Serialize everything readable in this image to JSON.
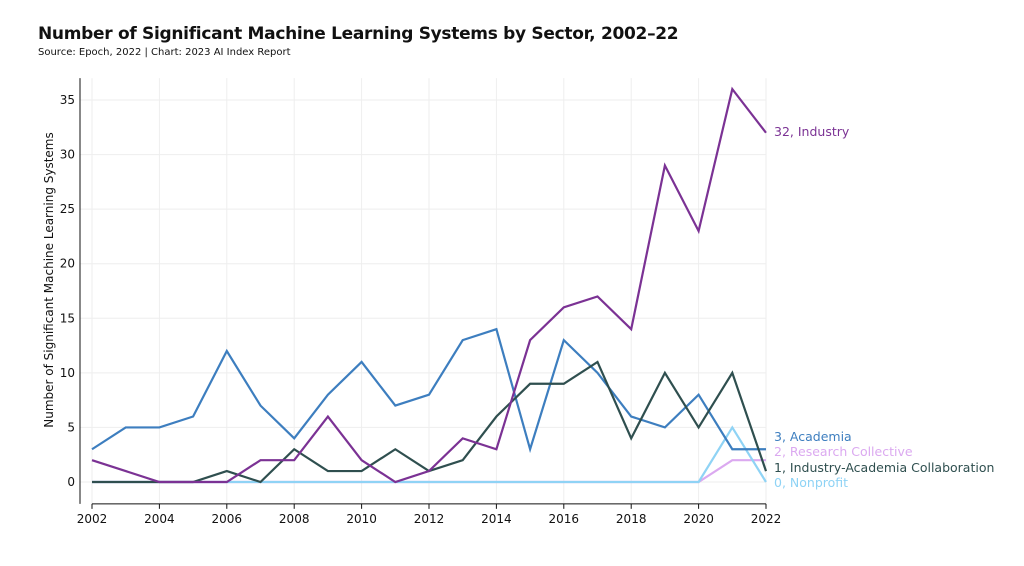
{
  "chart_data": {
    "type": "line",
    "title": "Number of Significant Machine Learning Systems by Sector, 2002–22",
    "subtitle": "Source: Epoch, 2022 | Chart: 2023 AI Index Report",
    "xlabel": "",
    "ylabel": "Number of Significant Machine Learning Systems",
    "xlim": [
      2002,
      2022
    ],
    "ylim": [
      -2,
      37
    ],
    "xticks": [
      2002,
      2004,
      2006,
      2008,
      2010,
      2012,
      2014,
      2016,
      2018,
      2020,
      2022
    ],
    "yticks": [
      0,
      5,
      10,
      15,
      20,
      25,
      30,
      35
    ],
    "grid": true,
    "x": [
      2002,
      2003,
      2004,
      2005,
      2006,
      2007,
      2008,
      2009,
      2010,
      2011,
      2012,
      2013,
      2014,
      2015,
      2016,
      2017,
      2018,
      2019,
      2020,
      2021,
      2022
    ],
    "series": [
      {
        "name": "Industry",
        "end_label": "32, Industry",
        "color": "#7b3294",
        "values": [
          2,
          1,
          0,
          0,
          0,
          2,
          2,
          6,
          2,
          0,
          1,
          4,
          3,
          13,
          16,
          17,
          14,
          29,
          23,
          36,
          32
        ]
      },
      {
        "name": "Academia",
        "end_label": "3, Academia",
        "color": "#3d7ebf",
        "values": [
          3,
          5,
          5,
          6,
          12,
          7,
          4,
          8,
          11,
          7,
          8,
          13,
          14,
          3,
          13,
          10,
          6,
          5,
          8,
          3,
          3
        ]
      },
      {
        "name": "Research Collective",
        "end_label": "2, Research Collective",
        "color": "#dba9f0",
        "values": [
          0,
          0,
          0,
          0,
          0,
          0,
          0,
          0,
          0,
          0,
          0,
          0,
          0,
          0,
          0,
          0,
          0,
          0,
          0,
          2,
          2
        ]
      },
      {
        "name": "Industry-Academia Collaboration",
        "end_label": "1, Industry-Academia Collaboration",
        "color": "#2f4f4f",
        "values": [
          0,
          0,
          0,
          0,
          1,
          0,
          3,
          1,
          1,
          3,
          1,
          2,
          6,
          9,
          9,
          11,
          4,
          10,
          5,
          10,
          1
        ]
      },
      {
        "name": "Nonprofit",
        "end_label": "0, Nonprofit",
        "color": "#8fd3f5",
        "values": [
          0,
          0,
          0,
          0,
          0,
          0,
          0,
          0,
          0,
          0,
          0,
          0,
          0,
          0,
          0,
          0,
          0,
          0,
          0,
          5,
          0
        ]
      }
    ],
    "legend": "end-of-line labels on right"
  }
}
